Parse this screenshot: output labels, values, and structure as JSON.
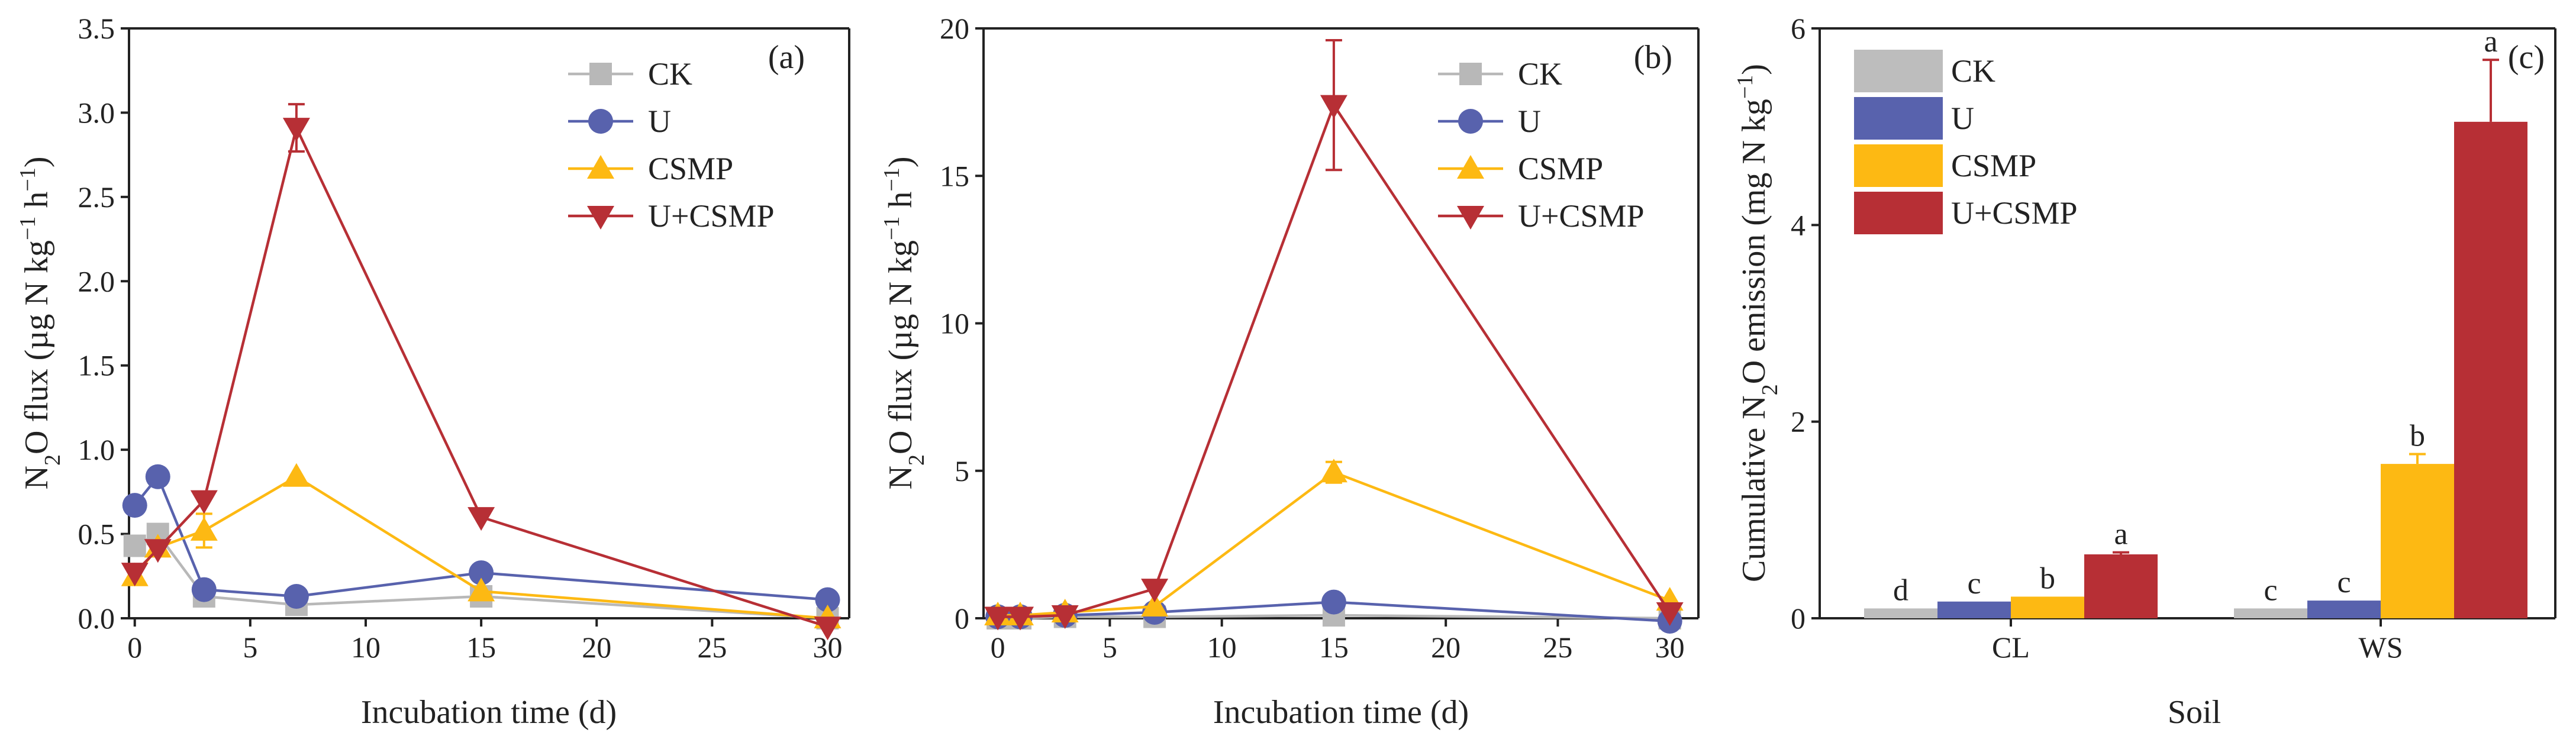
{
  "chart_data": [
    {
      "type": "line",
      "panel_label": "(a)",
      "xlabel": "Incubation time (d)",
      "ylabel": {
        "prefix": "N",
        "sub": "2",
        "rest": "O flux (µg N kg",
        "sup1": "−1",
        "mid": " h",
        "sup2": "−1",
        "end": ")"
      },
      "xlim": [
        0,
        30
      ],
      "ylim": [
        0,
        3.5
      ],
      "xticks": [
        0,
        5,
        10,
        15,
        20,
        25,
        30
      ],
      "yticks": [
        0,
        0.5,
        1.0,
        1.5,
        2.0,
        2.5,
        3.0,
        3.5
      ],
      "ytick_labels": [
        "0.0",
        "0.5",
        "1.0",
        "1.5",
        "2.0",
        "2.5",
        "3.0",
        "3.5"
      ],
      "legend_position": "top-right",
      "series": [
        {
          "name": "CK",
          "color": "#b8b8b8",
          "marker": "square",
          "x": [
            0,
            1,
            3,
            7,
            15,
            30
          ],
          "y": [
            0.43,
            0.5,
            0.13,
            0.08,
            0.13,
            0.0
          ],
          "err": [
            0,
            0,
            0,
            0,
            0,
            0
          ]
        },
        {
          "name": "U",
          "color": "#5862ad",
          "marker": "circle",
          "x": [
            0,
            1,
            3,
            7,
            15,
            30
          ],
          "y": [
            0.67,
            0.84,
            0.17,
            0.13,
            0.27,
            0.11
          ],
          "err": [
            0,
            0,
            0,
            0,
            0,
            0
          ]
        },
        {
          "name": "CSMP",
          "color": "#fdb913",
          "marker": "triangle-up",
          "x": [
            0,
            1,
            3,
            7,
            15,
            30
          ],
          "y": [
            0.25,
            0.42,
            0.52,
            0.84,
            0.16,
            0.0
          ],
          "err": [
            0,
            0,
            0.1,
            0,
            0,
            0
          ]
        },
        {
          "name": "U+CSMP",
          "color": "#b72f35",
          "marker": "triangle-down",
          "x": [
            0,
            1,
            3,
            7,
            15,
            30
          ],
          "y": [
            0.27,
            0.41,
            0.7,
            2.91,
            0.6,
            -0.05
          ],
          "err": [
            0,
            0,
            0,
            0.14,
            0,
            0
          ]
        }
      ]
    },
    {
      "type": "line",
      "panel_label": "(b)",
      "xlabel": "Incubation time (d)",
      "ylabel": {
        "prefix": "N",
        "sub": "2",
        "rest": "O flux (µg N kg",
        "sup1": "−1",
        "mid": " h",
        "sup2": "−1",
        "end": ")"
      },
      "xlim": [
        0,
        30
      ],
      "ylim": [
        0,
        20
      ],
      "xticks": [
        0,
        5,
        10,
        15,
        20,
        25,
        30
      ],
      "yticks": [
        0,
        5,
        10,
        15,
        20
      ],
      "ytick_labels": [
        "0",
        "5",
        "10",
        "15",
        "20"
      ],
      "legend_position": "top-right",
      "series": [
        {
          "name": "CK",
          "color": "#b8b8b8",
          "marker": "square",
          "x": [
            0,
            1,
            3,
            7,
            15,
            30
          ],
          "y": [
            0.0,
            0.0,
            0.05,
            0.05,
            0.1,
            0.0
          ],
          "err": [
            0,
            0,
            0,
            0,
            0,
            0
          ]
        },
        {
          "name": "U",
          "color": "#5862ad",
          "marker": "circle",
          "x": [
            0,
            1,
            3,
            7,
            15,
            30
          ],
          "y": [
            0.05,
            0.05,
            0.1,
            0.2,
            0.55,
            -0.1
          ],
          "err": [
            0,
            0,
            0,
            0,
            0,
            0
          ]
        },
        {
          "name": "CSMP",
          "color": "#fdb913",
          "marker": "triangle-up",
          "x": [
            0,
            1,
            3,
            7,
            15,
            30
          ],
          "y": [
            0.1,
            0.1,
            0.2,
            0.4,
            4.95,
            0.6
          ],
          "err": [
            0,
            0,
            0,
            0,
            0.35,
            0
          ]
        },
        {
          "name": "U+CSMP",
          "color": "#b72f35",
          "marker": "triangle-down",
          "x": [
            0,
            1,
            3,
            7,
            15,
            30
          ],
          "y": [
            0.05,
            0.05,
            0.1,
            1.0,
            17.4,
            0.2
          ],
          "err": [
            0,
            0,
            0,
            0,
            2.2,
            0
          ]
        }
      ]
    },
    {
      "type": "bar",
      "panel_label": "(c)",
      "xlabel": "Soil",
      "ylabel": {
        "prefix": "Cumulative N",
        "sub": "2",
        "rest": "O emission (mg N kg",
        "sup1": "−1",
        "end": ")"
      },
      "categories": [
        "CL",
        "WS"
      ],
      "ylim": [
        0,
        6
      ],
      "yticks": [
        0,
        2,
        4,
        6
      ],
      "ytick_labels": [
        "0",
        "2",
        "4",
        "6"
      ],
      "legend_position": "top-left",
      "series": [
        {
          "name": "CK",
          "color": "#bdbdbd",
          "values": [
            0.1,
            0.1
          ],
          "err": [
            0,
            0
          ],
          "labels": [
            "d",
            "c"
          ]
        },
        {
          "name": "U",
          "color": "#5862ad",
          "values": [
            0.17,
            0.18
          ],
          "err": [
            0,
            0
          ],
          "labels": [
            "c",
            "c"
          ]
        },
        {
          "name": "CSMP",
          "color": "#fdb913",
          "values": [
            0.22,
            1.57
          ],
          "err": [
            0,
            0.1
          ],
          "labels": [
            "b",
            "b"
          ]
        },
        {
          "name": "U+CSMP",
          "color": "#b72f35",
          "values": [
            0.65,
            5.05
          ],
          "err": [
            0.02,
            0.63
          ],
          "labels": [
            "a",
            "a"
          ]
        }
      ]
    }
  ]
}
